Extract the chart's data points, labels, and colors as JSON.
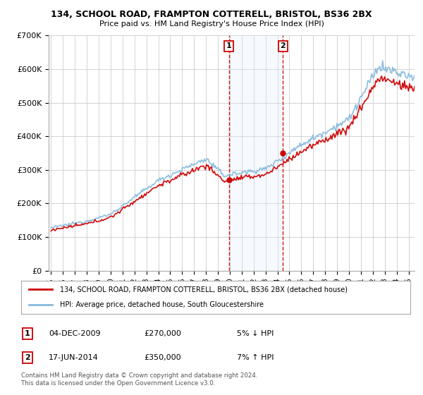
{
  "title1": "134, SCHOOL ROAD, FRAMPTON COTTERELL, BRISTOL, BS36 2BX",
  "title2": "Price paid vs. HM Land Registry's House Price Index (HPI)",
  "legend_line1": "134, SCHOOL ROAD, FRAMPTON COTTERELL, BRISTOL, BS36 2BX (detached house)",
  "legend_line2": "HPI: Average price, detached house, South Gloucestershire",
  "annotation1_label": "1",
  "annotation1_date": "04-DEC-2009",
  "annotation1_price": "£270,000",
  "annotation1_hpi": "5% ↓ HPI",
  "annotation2_label": "2",
  "annotation2_date": "17-JUN-2014",
  "annotation2_price": "£350,000",
  "annotation2_hpi": "7% ↑ HPI",
  "footer": "Contains HM Land Registry data © Crown copyright and database right 2024.\nThis data is licensed under the Open Government Licence v3.0.",
  "purchase1_year": 2009.92,
  "purchase1_value": 270000,
  "purchase2_year": 2014.46,
  "purchase2_value": 350000,
  "color_property": "#cc0000",
  "color_hpi": "#88bbdd",
  "color_shading": "#ddeeff",
  "ylim": [
    0,
    700000
  ],
  "xlim_start": 1994.8,
  "xlim_end": 2025.5,
  "yticks": [
    0,
    100000,
    200000,
    300000,
    400000,
    500000,
    600000,
    700000
  ],
  "ytick_labels": [
    "£0",
    "£100K",
    "£200K",
    "£300K",
    "£400K",
    "£500K",
    "£600K",
    "£700K"
  ],
  "background_color": "#ffffff",
  "grid_color": "#cccccc"
}
